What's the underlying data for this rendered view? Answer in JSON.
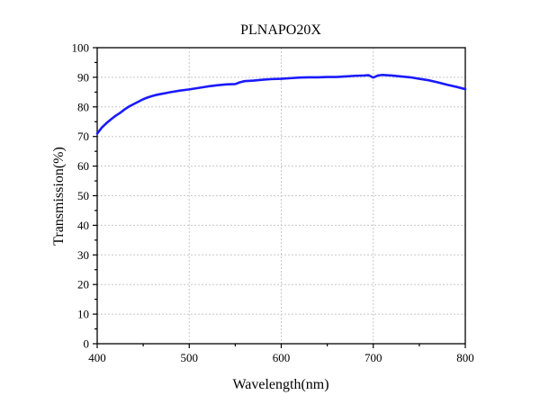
{
  "chart_data": {
    "type": "line",
    "title": "PLNAPO20X",
    "xlabel": "Wavelength(nm)",
    "ylabel": "Transmission(%)",
    "xlim": [
      400,
      800
    ],
    "ylim": [
      0,
      100
    ],
    "xticks": [
      "400",
      "500",
      "600",
      "700",
      "800"
    ],
    "yticks": [
      "0",
      "10",
      "20",
      "30",
      "40",
      "50",
      "60",
      "70",
      "80",
      "90",
      "100"
    ],
    "grid": true,
    "legend": "none",
    "series_color": "#1a1aff",
    "series": [
      {
        "x": [
          400,
          405,
          410,
          415,
          420,
          425,
          430,
          435,
          440,
          445,
          450,
          455,
          460,
          465,
          470,
          475,
          480,
          490,
          500,
          510,
          520,
          530,
          540,
          550,
          555,
          560,
          570,
          580,
          590,
          600,
          610,
          620,
          630,
          640,
          650,
          660,
          670,
          680,
          690,
          695,
          700,
          705,
          710,
          720,
          730,
          740,
          750,
          760,
          770,
          780,
          790,
          800
        ],
        "values": [
          71.0,
          73.0,
          74.5,
          75.8,
          77.0,
          78.0,
          79.2,
          80.2,
          81.0,
          81.8,
          82.6,
          83.2,
          83.7,
          84.1,
          84.4,
          84.7,
          85.0,
          85.5,
          85.9,
          86.4,
          86.9,
          87.3,
          87.6,
          87.7,
          88.3,
          88.7,
          88.9,
          89.2,
          89.4,
          89.5,
          89.7,
          89.9,
          90.0,
          90.0,
          90.1,
          90.1,
          90.3,
          90.5,
          90.6,
          90.7,
          89.9,
          90.6,
          90.8,
          90.6,
          90.3,
          90.0,
          89.5,
          89.0,
          88.3,
          87.5,
          86.8,
          86.0
        ]
      }
    ]
  }
}
